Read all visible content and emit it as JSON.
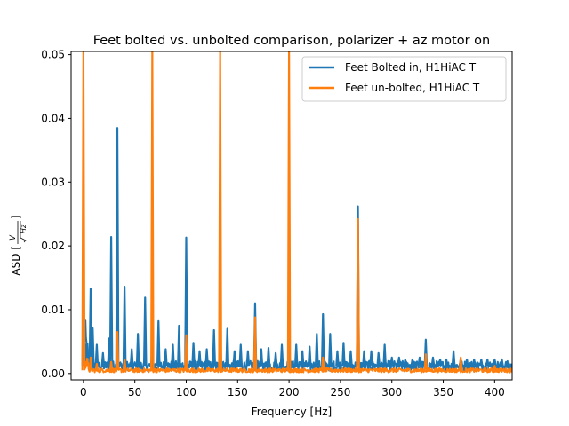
{
  "chart_data": {
    "type": "line",
    "title": "Feet bolted vs. unbolted comparison, polarizer + az motor on",
    "xlabel": "Frequency [Hz]",
    "ylabel": "ASD [V/√Hz]",
    "ylabel_parts": {
      "prefix": "ASD [",
      "num": "V",
      "den": "Hz",
      "suffix": "]"
    },
    "xlim": [
      -12,
      417
    ],
    "ylim": [
      -0.001,
      0.0505
    ],
    "xticks": [
      0,
      50,
      100,
      150,
      200,
      250,
      300,
      350,
      400
    ],
    "xtick_labels": [
      "0",
      "50",
      "100",
      "150",
      "200",
      "250",
      "300",
      "350",
      "400"
    ],
    "yticks": [
      0.0,
      0.01,
      0.02,
      0.03,
      0.04,
      0.05
    ],
    "ytick_labels": [
      "0.00",
      "0.01",
      "0.02",
      "0.03",
      "0.04",
      "0.05"
    ],
    "grid": false,
    "legend_position": "top-right",
    "series": [
      {
        "name": "Feet Bolted in, H1HiAC T",
        "color": "#1f77b4",
        "baseline": 0.0012,
        "peaks": [
          {
            "x": 0,
            "y": 0.013
          },
          {
            "x": 2,
            "y": 0.0045
          },
          {
            "x": 7,
            "y": 0.0133
          },
          {
            "x": 9,
            "y": 0.0071
          },
          {
            "x": 13,
            "y": 0.0045
          },
          {
            "x": 19,
            "y": 0.0032
          },
          {
            "x": 25,
            "y": 0.0055
          },
          {
            "x": 27,
            "y": 0.0214
          },
          {
            "x": 33,
            "y": 0.0385
          },
          {
            "x": 40,
            "y": 0.0136
          },
          {
            "x": 47,
            "y": 0.0038
          },
          {
            "x": 53,
            "y": 0.0062
          },
          {
            "x": 60,
            "y": 0.0119
          },
          {
            "x": 67,
            "y": 0.0055
          },
          {
            "x": 73,
            "y": 0.0082
          },
          {
            "x": 80,
            "y": 0.0038
          },
          {
            "x": 87,
            "y": 0.0045
          },
          {
            "x": 93,
            "y": 0.0075
          },
          {
            "x": 100,
            "y": 0.0213
          },
          {
            "x": 107,
            "y": 0.0048
          },
          {
            "x": 113,
            "y": 0.0035
          },
          {
            "x": 120,
            "y": 0.0038
          },
          {
            "x": 127,
            "y": 0.0068
          },
          {
            "x": 133,
            "y": 0.0082
          },
          {
            "x": 140,
            "y": 0.007
          },
          {
            "x": 147,
            "y": 0.0035
          },
          {
            "x": 153,
            "y": 0.0045
          },
          {
            "x": 160,
            "y": 0.0035
          },
          {
            "x": 167,
            "y": 0.011
          },
          {
            "x": 173,
            "y": 0.0038
          },
          {
            "x": 180,
            "y": 0.004
          },
          {
            "x": 187,
            "y": 0.0032
          },
          {
            "x": 193,
            "y": 0.0045
          },
          {
            "x": 200,
            "y": 0.0058
          },
          {
            "x": 207,
            "y": 0.0045
          },
          {
            "x": 213,
            "y": 0.0035
          },
          {
            "x": 220,
            "y": 0.0042
          },
          {
            "x": 227,
            "y": 0.0062
          },
          {
            "x": 233,
            "y": 0.0093
          },
          {
            "x": 240,
            "y": 0.0062
          },
          {
            "x": 247,
            "y": 0.0035
          },
          {
            "x": 253,
            "y": 0.0048
          },
          {
            "x": 260,
            "y": 0.0035
          },
          {
            "x": 267,
            "y": 0.0262
          },
          {
            "x": 273,
            "y": 0.0035
          },
          {
            "x": 280,
            "y": 0.0035
          },
          {
            "x": 287,
            "y": 0.0032
          },
          {
            "x": 293,
            "y": 0.0045
          },
          {
            "x": 300,
            "y": 0.0025
          },
          {
            "x": 307,
            "y": 0.0025
          },
          {
            "x": 313,
            "y": 0.0022
          },
          {
            "x": 320,
            "y": 0.0022
          },
          {
            "x": 327,
            "y": 0.0025
          },
          {
            "x": 333,
            "y": 0.0053
          },
          {
            "x": 340,
            "y": 0.0025
          },
          {
            "x": 347,
            "y": 0.0022
          },
          {
            "x": 353,
            "y": 0.0022
          },
          {
            "x": 360,
            "y": 0.0035
          },
          {
            "x": 367,
            "y": 0.0022
          },
          {
            "x": 373,
            "y": 0.0022
          },
          {
            "x": 380,
            "y": 0.0022
          },
          {
            "x": 387,
            "y": 0.0022
          },
          {
            "x": 393,
            "y": 0.0022
          },
          {
            "x": 400,
            "y": 0.0022
          },
          {
            "x": 407,
            "y": 0.0022
          }
        ]
      },
      {
        "name": "Feet un-bolted, H1HiAC T",
        "color": "#ff7f0e",
        "baseline": 0.0005,
        "peaks": [
          {
            "x": 0,
            "y": 0.0505
          },
          {
            "x": 7,
            "y": 0.0025
          },
          {
            "x": 13,
            "y": 0.0015
          },
          {
            "x": 27,
            "y": 0.0018
          },
          {
            "x": 33,
            "y": 0.0065
          },
          {
            "x": 40,
            "y": 0.0022
          },
          {
            "x": 67,
            "y": 0.0505
          },
          {
            "x": 100,
            "y": 0.006
          },
          {
            "x": 133,
            "y": 0.0505
          },
          {
            "x": 167,
            "y": 0.0088
          },
          {
            "x": 200,
            "y": 0.0505
          },
          {
            "x": 233,
            "y": 0.0025
          },
          {
            "x": 267,
            "y": 0.0242
          },
          {
            "x": 333,
            "y": 0.003
          },
          {
            "x": 367,
            "y": 0.0025
          },
          {
            "x": 400,
            "y": 0.0012
          }
        ]
      }
    ]
  }
}
